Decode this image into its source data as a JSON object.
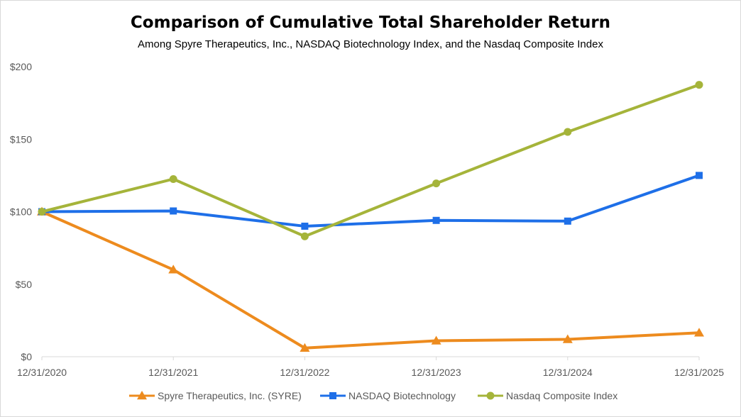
{
  "chart_data": {
    "type": "line",
    "title": "Comparison of Cumulative Total Shareholder Return",
    "subtitle": "Among Spyre Therapeutics, Inc., NASDAQ Biotechnology Index, and the Nasdaq Composite Index",
    "categories": [
      "12/31/2020",
      "12/31/2021",
      "12/31/2022",
      "12/31/2023",
      "12/31/2024",
      "12/31/2025"
    ],
    "ylim": [
      0,
      200
    ],
    "yticks": [
      0,
      50,
      100,
      150,
      200
    ],
    "ytick_labels": [
      "$0",
      "$50",
      "$100",
      "$150",
      "$200"
    ],
    "xlabel": "",
    "ylabel": "",
    "grid": false,
    "legend_position": "bottom",
    "series": [
      {
        "name": "Spyre Therapeutics, Inc. (SYRE)",
        "color": "#ED8B1E",
        "marker": "triangle",
        "values": [
          100,
          60,
          6,
          11,
          12,
          16.5
        ]
      },
      {
        "name": "NASDAQ Biotechnology",
        "color": "#1E6FE8",
        "marker": "square",
        "values": [
          100,
          100.5,
          90,
          94,
          93.5,
          125
        ]
      },
      {
        "name": "Nasdaq Composite Index",
        "color": "#A5B43A",
        "marker": "circle",
        "values": [
          100,
          122.5,
          83,
          119.5,
          155,
          187.5
        ]
      }
    ]
  }
}
